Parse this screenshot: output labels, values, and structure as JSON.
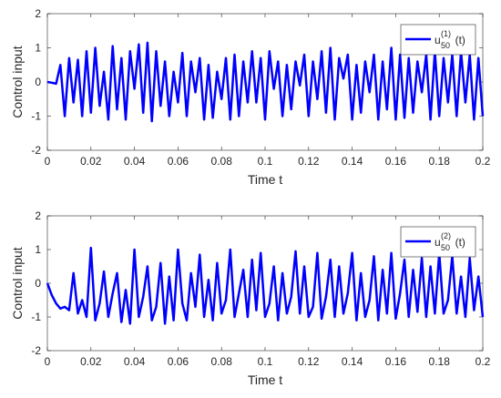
{
  "chart_data": [
    {
      "type": "line",
      "xlabel": "Time t",
      "ylabel": "Control input",
      "legend": "northeast",
      "xlim": [
        0,
        0.2
      ],
      "ylim": [
        -2,
        2
      ],
      "xticks": [
        0,
        0.02,
        0.04,
        0.06,
        0.08,
        0.1,
        0.12,
        0.14,
        0.16,
        0.18,
        0.2
      ],
      "yticks": [
        -2,
        -1,
        0,
        1,
        2
      ],
      "x": [
        0,
        0.002,
        0.004,
        0.006,
        0.008,
        0.01,
        0.012,
        0.014,
        0.016,
        0.018,
        0.02,
        0.022,
        0.024,
        0.026,
        0.028,
        0.03,
        0.032,
        0.034,
        0.036,
        0.038,
        0.04,
        0.042,
        0.044,
        0.046,
        0.048,
        0.05,
        0.052,
        0.054,
        0.056,
        0.058,
        0.06,
        0.062,
        0.064,
        0.066,
        0.068,
        0.07,
        0.072,
        0.074,
        0.076,
        0.078,
        0.08,
        0.082,
        0.084,
        0.086,
        0.088,
        0.09,
        0.092,
        0.094,
        0.096,
        0.098,
        0.1,
        0.102,
        0.104,
        0.106,
        0.108,
        0.11,
        0.112,
        0.114,
        0.116,
        0.118,
        0.12,
        0.122,
        0.124,
        0.126,
        0.128,
        0.13,
        0.132,
        0.134,
        0.136,
        0.138,
        0.14,
        0.142,
        0.144,
        0.146,
        0.148,
        0.15,
        0.152,
        0.154,
        0.156,
        0.158,
        0.16,
        0.162,
        0.164,
        0.166,
        0.168,
        0.17,
        0.172,
        0.174,
        0.176,
        0.178,
        0.18,
        0.182,
        0.184,
        0.186,
        0.188,
        0.19,
        0.192,
        0.194,
        0.196,
        0.198,
        0.2
      ],
      "series": [
        {
          "name": "u_{50}^{(1)}(t)",
          "color": "#0000ff",
          "values": [
            0,
            -0.02,
            -0.05,
            0.5,
            -1,
            0.7,
            -0.6,
            0.65,
            -1,
            0.9,
            -0.9,
            1,
            -0.7,
            0.3,
            -1.1,
            1.05,
            -0.8,
            0.7,
            -1.1,
            0.9,
            -0.2,
            1.1,
            -0.9,
            1.15,
            -1.15,
            0.9,
            -0.7,
            0.6,
            -1,
            0.3,
            -0.6,
            0.85,
            -1,
            0.6,
            -0.3,
            0.7,
            -1.1,
            0.5,
            -1.05,
            0.3,
            -0.5,
            0.7,
            -1.1,
            0.8,
            -1,
            0.6,
            -0.6,
            0.9,
            -0.6,
            0.7,
            -1.1,
            0.9,
            -0.2,
            0.6,
            -1,
            0.5,
            -0.8,
            0.6,
            -0.1,
            0.8,
            -1,
            0.6,
            -0.5,
            0.9,
            -0.9,
            1,
            -1.1,
            0.7,
            0.1,
            0.8,
            -1.1,
            0.5,
            -0.9,
            0.6,
            -0.3,
            0.8,
            -1.1,
            0.6,
            -0.8,
            1,
            -1.1,
            0.8,
            -1.05,
            0.7,
            -0.9,
            0.6,
            -0.3,
            0.8,
            -1.1,
            0.9,
            -1,
            0.7,
            -0.6,
            0.8,
            -1,
            0.9,
            -0.6,
            0.8,
            -1.1,
            0.7,
            -1
          ]
        }
      ]
    },
    {
      "type": "line",
      "xlabel": "Time t",
      "ylabel": "Control input",
      "legend": "northeast",
      "xlim": [
        0,
        0.2
      ],
      "ylim": [
        -2,
        2
      ],
      "xticks": [
        0,
        0.02,
        0.04,
        0.06,
        0.08,
        0.1,
        0.12,
        0.14,
        0.16,
        0.18,
        0.2
      ],
      "yticks": [
        -2,
        -1,
        0,
        1,
        2
      ],
      "x": [
        0,
        0.002,
        0.004,
        0.006,
        0.008,
        0.01,
        0.012,
        0.014,
        0.016,
        0.018,
        0.02,
        0.022,
        0.024,
        0.026,
        0.028,
        0.03,
        0.032,
        0.034,
        0.036,
        0.038,
        0.04,
        0.042,
        0.044,
        0.046,
        0.048,
        0.05,
        0.052,
        0.054,
        0.056,
        0.058,
        0.06,
        0.062,
        0.064,
        0.066,
        0.068,
        0.07,
        0.072,
        0.074,
        0.076,
        0.078,
        0.08,
        0.082,
        0.084,
        0.086,
        0.088,
        0.09,
        0.092,
        0.094,
        0.096,
        0.098,
        0.1,
        0.102,
        0.104,
        0.106,
        0.108,
        0.11,
        0.112,
        0.114,
        0.116,
        0.118,
        0.12,
        0.122,
        0.124,
        0.126,
        0.128,
        0.13,
        0.132,
        0.134,
        0.136,
        0.138,
        0.14,
        0.142,
        0.144,
        0.146,
        0.148,
        0.15,
        0.152,
        0.154,
        0.156,
        0.158,
        0.16,
        0.162,
        0.164,
        0.166,
        0.168,
        0.17,
        0.172,
        0.174,
        0.176,
        0.178,
        0.18,
        0.182,
        0.184,
        0.186,
        0.188,
        0.19,
        0.192,
        0.194,
        0.196,
        0.198,
        0.2
      ],
      "series": [
        {
          "name": "u_{50}^{(2)}(t)",
          "color": "#0000ff",
          "values": [
            0,
            -0.35,
            -0.6,
            -0.75,
            -0.7,
            -0.8,
            0.3,
            -0.9,
            -0.5,
            -1,
            1.05,
            -1.1,
            -0.6,
            0.35,
            -1,
            -0.3,
            0.3,
            -1.15,
            -0.2,
            -1.2,
            1,
            -1,
            -0.4,
            0.5,
            -1.1,
            -0.7,
            0.6,
            -1.2,
            0.2,
            -1.1,
            1,
            -0.6,
            -1.1,
            0.3,
            -0.7,
            0.85,
            -1,
            0.1,
            -1.1,
            0.6,
            -0.9,
            -0.5,
            1,
            -1,
            -0.3,
            0.4,
            -1,
            0.7,
            -0.8,
            0.9,
            -1,
            -0.6,
            0.5,
            -1.1,
            0.3,
            -0.9,
            -0.4,
            0.95,
            -0.9,
            0.5,
            -1,
            -0.7,
            0.9,
            -1.05,
            -0.4,
            0.7,
            -1,
            0.5,
            -0.9,
            -0.3,
            0.9,
            -1.1,
            0.3,
            -1,
            -0.5,
            0.8,
            -1.1,
            0.4,
            -0.9,
            0.9,
            -1.05,
            -0.3,
            0.7,
            -1,
            0.4,
            -0.85,
            0.75,
            -1,
            0.5,
            -0.9,
            0.9,
            -0.9,
            -0.5,
            0.8,
            -0.9,
            0.2,
            -1,
            0.75,
            -0.8,
            0.2,
            -1
          ]
        }
      ]
    }
  ]
}
